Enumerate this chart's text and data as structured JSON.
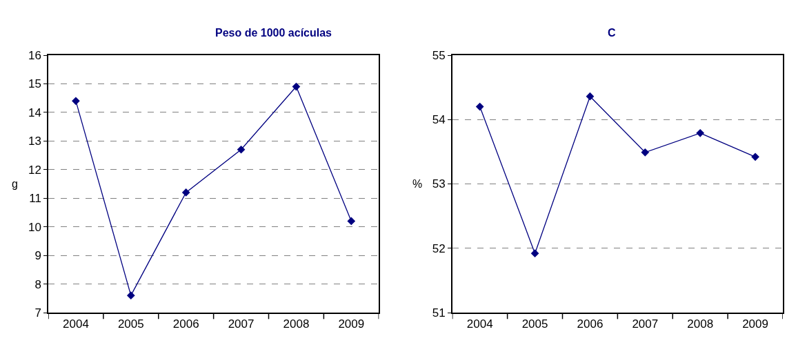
{
  "chart_data": [
    {
      "type": "line",
      "title": "Peso de 1000 acículas",
      "ylabel": "g",
      "categories": [
        "2004",
        "2005",
        "2006",
        "2007",
        "2008",
        "2009"
      ],
      "series": [
        {
          "color": "#000080",
          "values": [
            14.4,
            7.6,
            11.2,
            12.7,
            14.9,
            10.2
          ]
        }
      ],
      "ylim": [
        7,
        16
      ],
      "yticks": [
        7,
        8,
        9,
        10,
        11,
        12,
        13,
        14,
        15,
        16
      ],
      "grid": "y",
      "marker": "diamond",
      "line_style": "solid"
    },
    {
      "type": "line",
      "title": "C",
      "ylabel": "%",
      "categories": [
        "2004",
        "2005",
        "2006",
        "2007",
        "2008",
        "2009"
      ],
      "series": [
        {
          "color": "#000080",
          "values": [
            54.2,
            51.92,
            54.36,
            53.49,
            53.79,
            53.42
          ]
        }
      ],
      "ylim": [
        51,
        55
      ],
      "yticks": [
        51,
        52,
        53,
        54,
        55
      ],
      "grid": "y",
      "marker": "diamond",
      "line_style": "solid"
    }
  ]
}
